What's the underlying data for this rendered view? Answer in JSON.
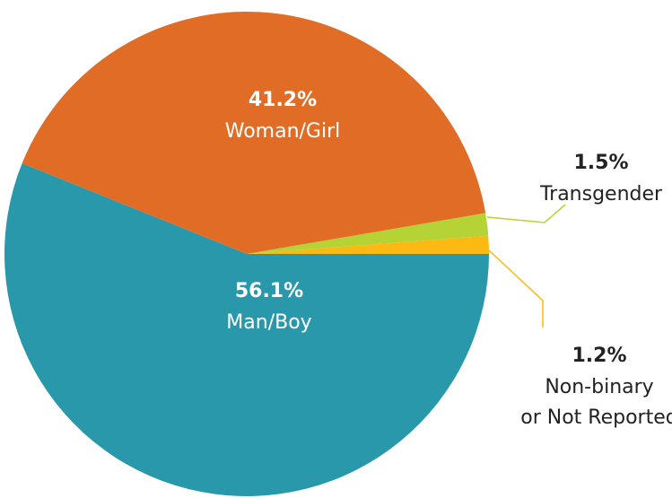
{
  "chart_data": {
    "type": "pie",
    "categories": [
      "Non-binary\nor Not Reported",
      "Transgender",
      "Woman/Girl",
      "Man/Boy"
    ],
    "values": [
      1.2,
      1.5,
      41.2,
      56.1
    ],
    "value_labels": [
      "1.2%",
      "1.5%",
      "41.2%",
      "56.1%"
    ],
    "colors": [
      "#fdb913",
      "#b5d334",
      "#e06c26",
      "#2a98ab"
    ]
  }
}
